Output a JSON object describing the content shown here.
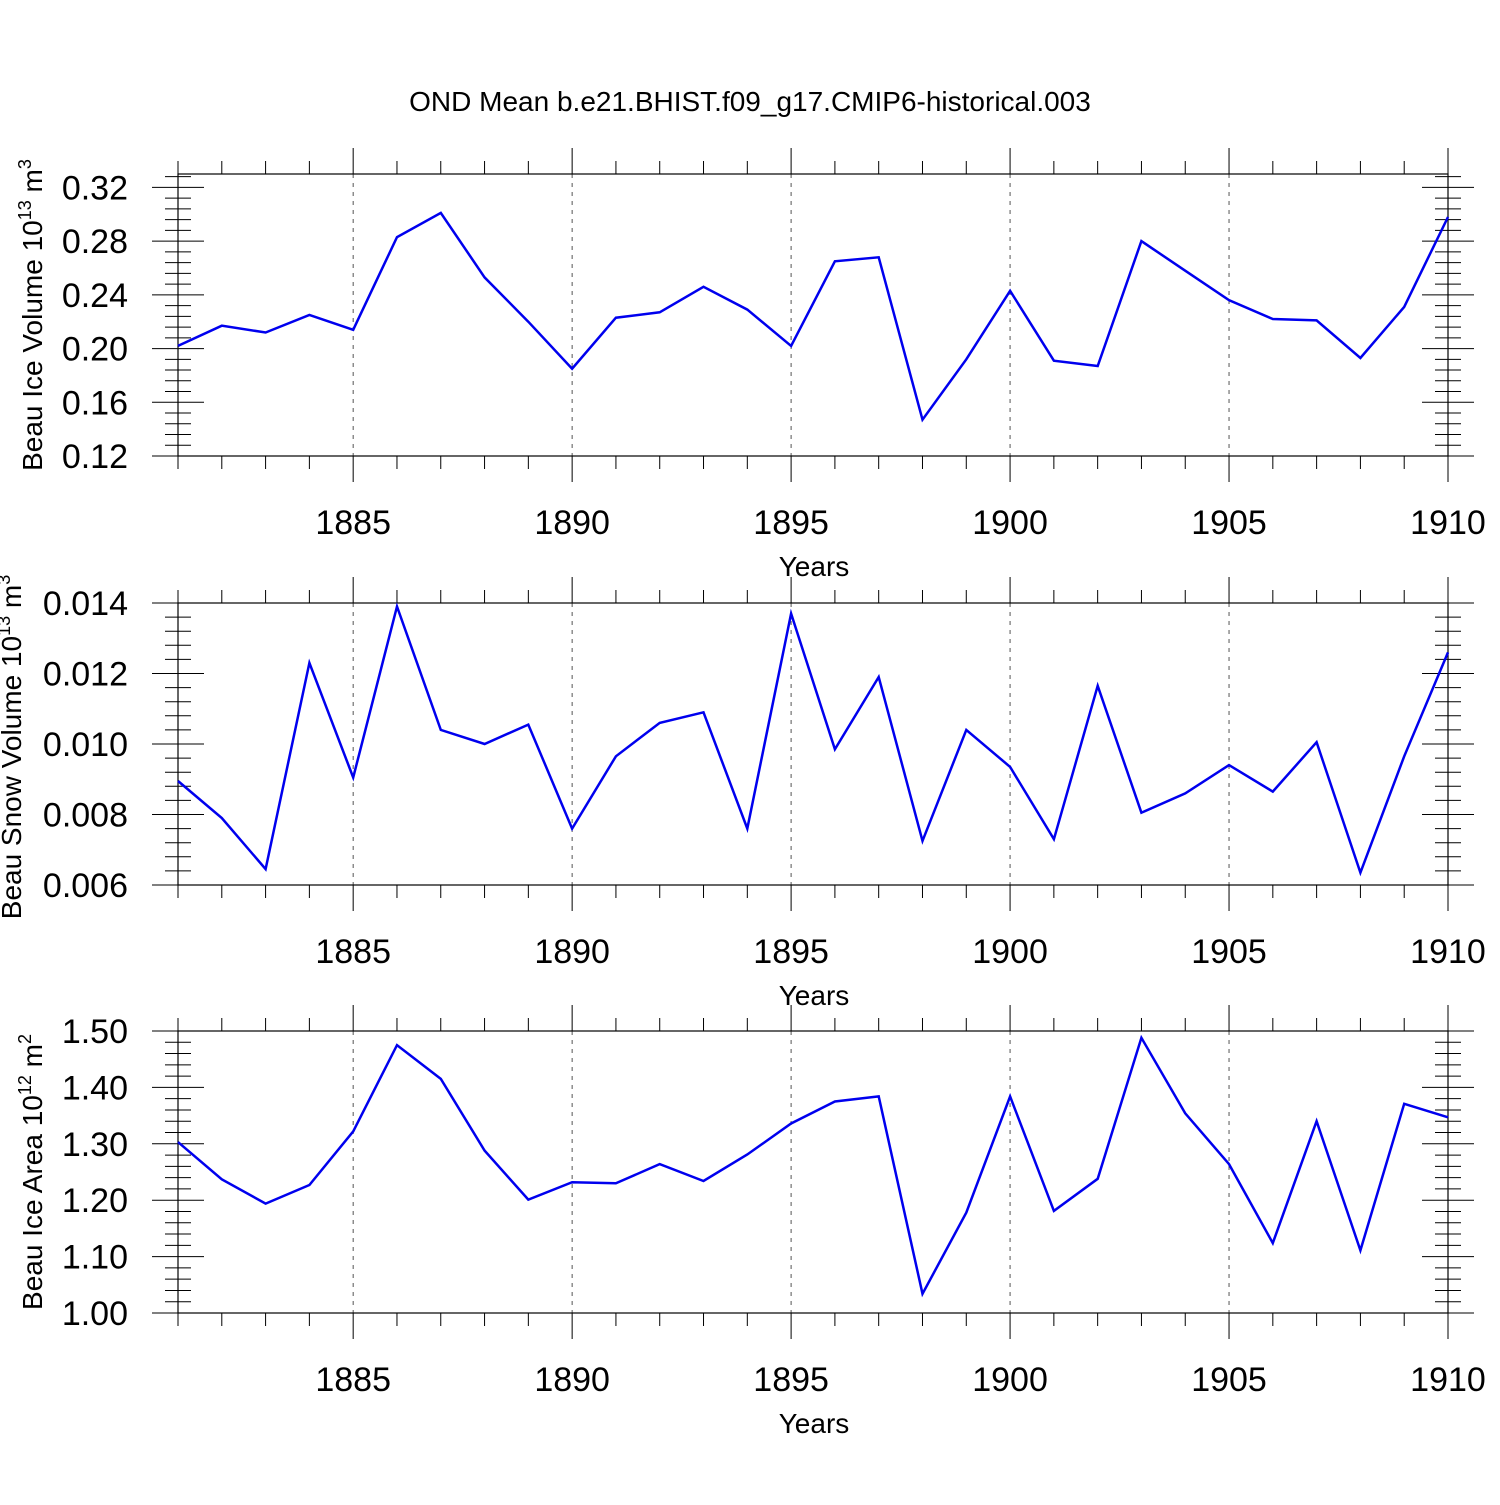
{
  "title": "OND Mean b.e21.BHIST.f09_g17.CMIP6-historical.003",
  "colors": {
    "series": "#0000ee",
    "grid": "#555555",
    "axis": "#000000"
  },
  "chart_data": [
    {
      "type": "line",
      "ylabel": {
        "text": "Beau Ice Volume 10",
        "sup": "13",
        "unit": " m",
        "unit_sup": "3"
      },
      "xlabel": "Years",
      "xlim": [
        1881,
        1910
      ],
      "ylim": [
        0.12,
        0.33
      ],
      "x_ticks": [
        "1885",
        "1890",
        "1895",
        "1900",
        "1905",
        "1910"
      ],
      "y_ticks": [
        "0.12",
        "0.16",
        "0.20",
        "0.24",
        "0.28",
        "0.32"
      ],
      "grid": "vertical dashed at major ticks",
      "x": [
        1881,
        1882,
        1883,
        1884,
        1885,
        1886,
        1887,
        1888,
        1889,
        1890,
        1891,
        1892,
        1893,
        1894,
        1895,
        1896,
        1897,
        1898,
        1899,
        1900,
        1901,
        1902,
        1903,
        1904,
        1905,
        1906,
        1907,
        1908,
        1909,
        1910
      ],
      "values": [
        0.202,
        0.217,
        0.212,
        0.225,
        0.214,
        0.283,
        0.301,
        0.253,
        0.22,
        0.185,
        0.223,
        0.227,
        0.246,
        0.229,
        0.202,
        0.265,
        0.268,
        0.147,
        0.192,
        0.243,
        0.191,
        0.187,
        0.28,
        0.258,
        0.236,
        0.222,
        0.221,
        0.193,
        0.231,
        0.298
      ]
    },
    {
      "type": "line",
      "ylabel": {
        "text": "Beau Snow Volume 10",
        "sup": "13",
        "unit": " m",
        "unit_sup": "3"
      },
      "xlabel": "Years",
      "xlim": [
        1881,
        1910
      ],
      "ylim": [
        0.006,
        0.014
      ],
      "x_ticks": [
        "1885",
        "1890",
        "1895",
        "1900",
        "1905",
        "1910"
      ],
      "y_ticks": [
        "0.006",
        "0.008",
        "0.010",
        "0.012",
        "0.014"
      ],
      "grid": "vertical dashed at major ticks",
      "x": [
        1881,
        1882,
        1883,
        1884,
        1885,
        1886,
        1887,
        1888,
        1889,
        1890,
        1891,
        1892,
        1893,
        1894,
        1895,
        1896,
        1897,
        1898,
        1899,
        1900,
        1901,
        1902,
        1903,
        1904,
        1905,
        1906,
        1907,
        1908,
        1909,
        1910
      ],
      "values": [
        0.00895,
        0.0079,
        0.00645,
        0.0123,
        0.00905,
        0.0139,
        0.0104,
        0.01,
        0.01055,
        0.0076,
        0.00965,
        0.0106,
        0.0109,
        0.0076,
        0.0137,
        0.00985,
        0.0119,
        0.00725,
        0.0104,
        0.00935,
        0.0073,
        0.01165,
        0.00805,
        0.0086,
        0.0094,
        0.00865,
        0.01005,
        0.00635,
        0.00965,
        0.0126
      ]
    },
    {
      "type": "line",
      "ylabel": {
        "text": "Beau Ice Area 10",
        "sup": "12",
        "unit": " m",
        "unit_sup": "2"
      },
      "xlabel": "Years",
      "xlim": [
        1881,
        1910
      ],
      "ylim": [
        1.0,
        1.5
      ],
      "x_ticks": [
        "1885",
        "1890",
        "1895",
        "1900",
        "1905",
        "1910"
      ],
      "y_ticks": [
        "1.00",
        "1.10",
        "1.20",
        "1.30",
        "1.40",
        "1.50"
      ],
      "grid": "vertical dashed at major ticks",
      "x": [
        1881,
        1882,
        1883,
        1884,
        1885,
        1886,
        1887,
        1888,
        1889,
        1890,
        1891,
        1892,
        1893,
        1894,
        1895,
        1896,
        1897,
        1898,
        1899,
        1900,
        1901,
        1902,
        1903,
        1904,
        1905,
        1906,
        1907,
        1908,
        1909,
        1910
      ],
      "values": [
        1.303,
        1.237,
        1.194,
        1.227,
        1.322,
        1.475,
        1.415,
        1.288,
        1.201,
        1.232,
        1.23,
        1.264,
        1.234,
        1.281,
        1.336,
        1.375,
        1.384,
        1.034,
        1.178,
        1.384,
        1.181,
        1.238,
        1.488,
        1.354,
        1.264,
        1.124,
        1.34,
        1.111,
        1.371,
        1.347
      ]
    }
  ]
}
